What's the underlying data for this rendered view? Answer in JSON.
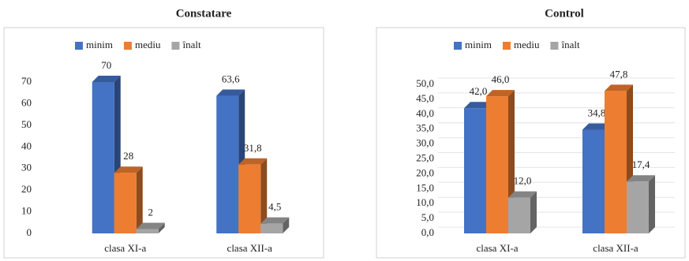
{
  "chart_data": [
    {
      "type": "bar3d",
      "title": "Constatare",
      "categories": [
        "clasa XI-a",
        "clasa XII-a"
      ],
      "series": [
        {
          "name": "minim",
          "color": "#4472c4",
          "values": [
            70,
            63.6
          ],
          "value_labels": [
            "70",
            "63,6"
          ]
        },
        {
          "name": "mediu",
          "color": "#ed7d31",
          "values": [
            28,
            31.8
          ],
          "value_labels": [
            "28",
            "31,8"
          ]
        },
        {
          "name": "înalt",
          "color": "#a5a5a5",
          "values": [
            2,
            4.5
          ],
          "value_labels": [
            "2",
            "4,5"
          ]
        }
      ],
      "ylim": [
        0,
        70
      ],
      "yticks": [
        0,
        10,
        20,
        30,
        40,
        50,
        60,
        70
      ],
      "grid": false,
      "legend": "top"
    },
    {
      "type": "bar3d",
      "title": "Control",
      "categories": [
        "clasa XI-a",
        "clasa XII-a"
      ],
      "series": [
        {
          "name": "minim",
          "color": "#4472c4",
          "values": [
            42.0,
            34.8
          ],
          "value_labels": [
            "42,0",
            "34,8"
          ]
        },
        {
          "name": "mediu",
          "color": "#ed7d31",
          "values": [
            46.0,
            47.8
          ],
          "value_labels": [
            "46,0",
            "47,8"
          ]
        },
        {
          "name": "înalt",
          "color": "#a5a5a5",
          "values": [
            12.0,
            17.4
          ],
          "value_labels": [
            "12,0",
            "17,4"
          ]
        }
      ],
      "ylim": [
        0,
        50
      ],
      "yticks": [
        {
          "value": 0,
          "label": "0,0"
        },
        {
          "value": 5,
          "label": "5,0"
        },
        {
          "value": 10,
          "label": "10,0"
        },
        {
          "value": 15,
          "label": "15,0"
        },
        {
          "value": 20,
          "label": "20,0"
        },
        {
          "value": 25,
          "label": "25,0"
        },
        {
          "value": 30,
          "label": "30,0"
        },
        {
          "value": 35,
          "label": "35,0"
        },
        {
          "value": 40,
          "label": "40,0"
        },
        {
          "value": 45,
          "label": "45,0"
        },
        {
          "value": 50,
          "label": "50,0"
        }
      ],
      "grid": true,
      "legend": "top"
    }
  ]
}
